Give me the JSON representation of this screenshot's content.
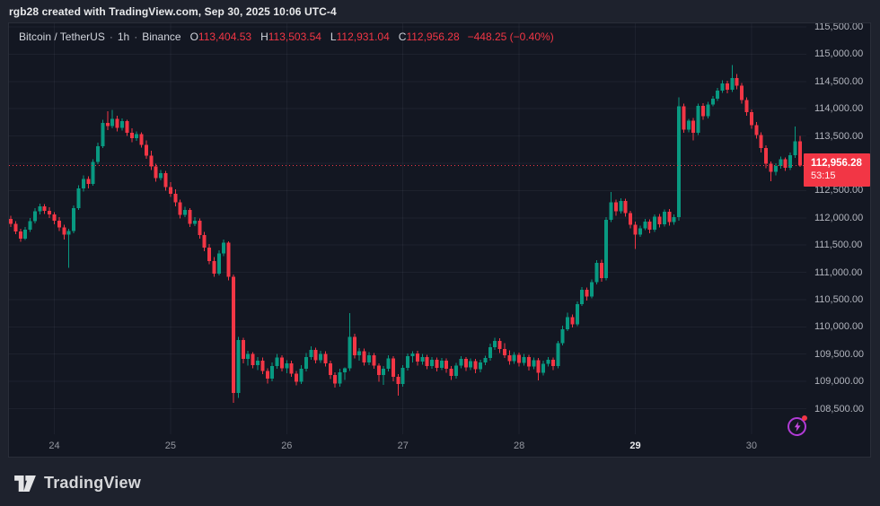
{
  "watermark": "rgb28 created with TradingView.com, Sep 30, 2025 10:06 UTC-4",
  "legend": {
    "symbol": "Bitcoin / TetherUS",
    "separator": "·",
    "interval": "1h",
    "exchange": "Binance",
    "ohlc": [
      {
        "label": "O",
        "value": "113,404.53"
      },
      {
        "label": "H",
        "value": "113,503.54"
      },
      {
        "label": "L",
        "value": "112,931.04"
      },
      {
        "label": "C",
        "value": "112,956.28"
      }
    ],
    "change": "−448.25 (−0.40%)"
  },
  "price_scale": {
    "current_price_label": "112,956.28",
    "countdown": "53:15"
  },
  "logo": {
    "text": "TradingView"
  },
  "colors": {
    "up": "#089981",
    "down": "#f23645",
    "background": "#131722",
    "outer_background": "#1e222d",
    "grid": "rgba(134,142,161,0.09)",
    "axis_text": "#b2b5be",
    "boost_purple": "#b13bd6"
  },
  "chart_data": {
    "type": "candlestick",
    "title": "Bitcoin / TetherUS · 1h · Binance",
    "interval": "1h",
    "current_price": 112956.28,
    "countdown": "53:15",
    "price_axis": {
      "min": 108500,
      "max": 115500,
      "tick_step": 500,
      "tick_values": [
        115500,
        115000,
        114500,
        114000,
        113500,
        113000,
        112500,
        112000,
        111500,
        111000,
        110500,
        110000,
        109500,
        109000,
        108500
      ],
      "tick_labels": [
        "115,500.00",
        "115,000.00",
        "114,500.00",
        "114,000.00",
        "113,500.00",
        "113,000.00",
        "112,500.00",
        "112,000.00",
        "111,500.00",
        "111,000.00",
        "110,500.00",
        "110,000.00",
        "109,500.00",
        "109,000.00",
        "108,500.00"
      ]
    },
    "time_axis": {
      "ticks": [
        {
          "label": "24",
          "candle_index": 9
        },
        {
          "label": "25",
          "candle_index": 33
        },
        {
          "label": "26",
          "candle_index": 57
        },
        {
          "label": "27",
          "candle_index": 81
        },
        {
          "label": "28",
          "candle_index": 105
        },
        {
          "label": "29",
          "candle_index": 129
        },
        {
          "label": "30",
          "candle_index": 153
        }
      ],
      "highlighted_label": "29"
    },
    "candles": [
      [
        111980,
        112040,
        111830,
        111890
      ],
      [
        111890,
        111940,
        111700,
        111750
      ],
      [
        111750,
        111800,
        111560,
        111620
      ],
      [
        111620,
        111830,
        111590,
        111780
      ],
      [
        111780,
        112000,
        111740,
        111940
      ],
      [
        111940,
        112180,
        111900,
        112120
      ],
      [
        112120,
        112260,
        112060,
        112210
      ],
      [
        112210,
        112250,
        112070,
        112130
      ],
      [
        112130,
        112190,
        112000,
        112060
      ],
      [
        112060,
        112100,
        111880,
        111950
      ],
      [
        111950,
        112010,
        111760,
        111820
      ],
      [
        111820,
        111870,
        111600,
        111690
      ],
      [
        111690,
        111800,
        111080,
        111760
      ],
      [
        111760,
        112230,
        111720,
        112180
      ],
      [
        112180,
        112600,
        112140,
        112540
      ],
      [
        112540,
        112780,
        112480,
        112710
      ],
      [
        112710,
        112760,
        112540,
        112620
      ],
      [
        112620,
        113070,
        112590,
        113020
      ],
      [
        113020,
        113380,
        112980,
        113310
      ],
      [
        113310,
        113800,
        113280,
        113740
      ],
      [
        113740,
        113950,
        113610,
        113680
      ],
      [
        113680,
        113980,
        113640,
        113810
      ],
      [
        113810,
        113870,
        113580,
        113650
      ],
      [
        113650,
        113820,
        113600,
        113770
      ],
      [
        113770,
        113800,
        113500,
        113560
      ],
      [
        113560,
        113640,
        113390,
        113460
      ],
      [
        113460,
        113580,
        113410,
        113530
      ],
      [
        113530,
        113570,
        113290,
        113340
      ],
      [
        113340,
        113420,
        113080,
        113140
      ],
      [
        113140,
        113230,
        112880,
        112940
      ],
      [
        112940,
        112990,
        112660,
        112730
      ],
      [
        112730,
        112880,
        112690,
        112820
      ],
      [
        112820,
        112860,
        112500,
        112560
      ],
      [
        112560,
        112650,
        112380,
        112440
      ],
      [
        112440,
        112520,
        112210,
        112280
      ],
      [
        112280,
        112330,
        111990,
        112050
      ],
      [
        112050,
        112200,
        112010,
        112140
      ],
      [
        112140,
        112180,
        111830,
        111890
      ],
      [
        111890,
        112010,
        111850,
        111950
      ],
      [
        111950,
        111990,
        111620,
        111680
      ],
      [
        111680,
        111740,
        111390,
        111450
      ],
      [
        111450,
        111520,
        111150,
        111210
      ],
      [
        111210,
        111280,
        110920,
        110980
      ],
      [
        110980,
        111400,
        110940,
        111350
      ],
      [
        111350,
        111600,
        111300,
        111540
      ],
      [
        111540,
        111570,
        110850,
        110920
      ],
      [
        110920,
        110960,
        108610,
        108790
      ],
      [
        108790,
        109820,
        108700,
        109760
      ],
      [
        109760,
        109800,
        109330,
        109410
      ],
      [
        109410,
        109560,
        109290,
        109500
      ],
      [
        109500,
        109540,
        109240,
        109300
      ],
      [
        109300,
        109450,
        109210,
        109380
      ],
      [
        109380,
        109440,
        109130,
        109190
      ],
      [
        109190,
        109240,
        108960,
        109050
      ],
      [
        109050,
        109350,
        109000,
        109280
      ],
      [
        109280,
        109500,
        109230,
        109440
      ],
      [
        109440,
        109480,
        109180,
        109240
      ],
      [
        109240,
        109390,
        109150,
        109330
      ],
      [
        109330,
        109380,
        109080,
        109140
      ],
      [
        109140,
        109190,
        108930,
        108990
      ],
      [
        108990,
        109300,
        108950,
        109230
      ],
      [
        109230,
        109520,
        109180,
        109450
      ],
      [
        109450,
        109640,
        109400,
        109580
      ],
      [
        109580,
        109620,
        109330,
        109390
      ],
      [
        109390,
        109560,
        109340,
        109500
      ],
      [
        109500,
        109550,
        109270,
        109330
      ],
      [
        109330,
        109380,
        109040,
        109120
      ],
      [
        109120,
        109170,
        108890,
        108960
      ],
      [
        108960,
        109230,
        108900,
        109170
      ],
      [
        109170,
        109260,
        109030,
        109240
      ],
      [
        109240,
        110250,
        109190,
        109820
      ],
      [
        109820,
        109870,
        109420,
        109480
      ],
      [
        109480,
        109610,
        109380,
        109550
      ],
      [
        109550,
        109600,
        109290,
        109350
      ],
      [
        109350,
        109540,
        109300,
        109480
      ],
      [
        109480,
        109520,
        109230,
        109290
      ],
      [
        109290,
        109330,
        108990,
        109120
      ],
      [
        109120,
        109280,
        108940,
        109230
      ],
      [
        109230,
        109480,
        109180,
        109420
      ],
      [
        109420,
        109460,
        109000,
        109080
      ],
      [
        109080,
        109130,
        108740,
        108950
      ],
      [
        108950,
        109300,
        108900,
        109250
      ],
      [
        109250,
        109510,
        109200,
        109460
      ],
      [
        109460,
        109550,
        109350,
        109510
      ],
      [
        109510,
        109560,
        109290,
        109360
      ],
      [
        109360,
        109500,
        109310,
        109450
      ],
      [
        109450,
        109490,
        109220,
        109280
      ],
      [
        109280,
        109450,
        109230,
        109400
      ],
      [
        109400,
        109440,
        109180,
        109250
      ],
      [
        109250,
        109430,
        109210,
        109380
      ],
      [
        109380,
        109420,
        109160,
        109230
      ],
      [
        109230,
        109280,
        109030,
        109100
      ],
      [
        109100,
        109340,
        109050,
        109290
      ],
      [
        109290,
        109460,
        109240,
        109410
      ],
      [
        109410,
        109450,
        109190,
        109260
      ],
      [
        109260,
        109420,
        109210,
        109370
      ],
      [
        109370,
        109410,
        109150,
        109220
      ],
      [
        109220,
        109400,
        109170,
        109350
      ],
      [
        109350,
        109470,
        109300,
        109430
      ],
      [
        109430,
        109690,
        109380,
        109630
      ],
      [
        109630,
        109800,
        109580,
        109740
      ],
      [
        109740,
        109790,
        109520,
        109590
      ],
      [
        109590,
        109700,
        109430,
        109480
      ],
      [
        109480,
        109570,
        109310,
        109370
      ],
      [
        109370,
        109540,
        109320,
        109490
      ],
      [
        109490,
        109530,
        109270,
        109340
      ],
      [
        109340,
        109500,
        109290,
        109450
      ],
      [
        109450,
        109490,
        109200,
        109270
      ],
      [
        109270,
        109440,
        109220,
        109390
      ],
      [
        109390,
        109430,
        109020,
        109160
      ],
      [
        109160,
        109380,
        109110,
        109320
      ],
      [
        109320,
        109450,
        109270,
        109400
      ],
      [
        109400,
        109440,
        109210,
        109280
      ],
      [
        109280,
        109740,
        109240,
        109700
      ],
      [
        109700,
        110020,
        109660,
        109960
      ],
      [
        109960,
        110260,
        109920,
        110180
      ],
      [
        110180,
        110230,
        109990,
        110050
      ],
      [
        110050,
        110470,
        110010,
        110420
      ],
      [
        110420,
        110730,
        110380,
        110680
      ],
      [
        110680,
        110720,
        110480,
        110560
      ],
      [
        110560,
        110870,
        110520,
        110820
      ],
      [
        110820,
        111220,
        110780,
        111170
      ],
      [
        111170,
        111230,
        110830,
        110890
      ],
      [
        110890,
        112010,
        110850,
        111960
      ],
      [
        111960,
        112470,
        111920,
        112280
      ],
      [
        112280,
        112330,
        112040,
        112120
      ],
      [
        112120,
        112360,
        112080,
        112310
      ],
      [
        112310,
        112350,
        112020,
        112090
      ],
      [
        112090,
        112130,
        111810,
        111870
      ],
      [
        111870,
        111930,
        111430,
        111690
      ],
      [
        111690,
        111860,
        111650,
        111810
      ],
      [
        111810,
        111980,
        111770,
        111930
      ],
      [
        111930,
        111970,
        111720,
        111780
      ],
      [
        111780,
        112060,
        111740,
        112020
      ],
      [
        112020,
        112070,
        111820,
        111880
      ],
      [
        111880,
        112150,
        111840,
        112110
      ],
      [
        112110,
        112160,
        111860,
        111920
      ],
      [
        111920,
        112060,
        111870,
        112010
      ],
      [
        112010,
        114210,
        111950,
        114040
      ],
      [
        114040,
        114090,
        113560,
        113620
      ],
      [
        113620,
        113810,
        113570,
        113780
      ],
      [
        113780,
        113830,
        113420,
        113560
      ],
      [
        113560,
        114090,
        113520,
        114050
      ],
      [
        114050,
        114100,
        113800,
        113860
      ],
      [
        113860,
        114130,
        113820,
        114080
      ],
      [
        114080,
        114230,
        114040,
        114180
      ],
      [
        114180,
        114380,
        114140,
        114330
      ],
      [
        114330,
        114520,
        114290,
        114460
      ],
      [
        114460,
        114510,
        114280,
        114350
      ],
      [
        114350,
        114800,
        114310,
        114560
      ],
      [
        114560,
        114640,
        114360,
        114420
      ],
      [
        114420,
        114470,
        114090,
        114160
      ],
      [
        114160,
        114210,
        113870,
        113940
      ],
      [
        113940,
        113990,
        113630,
        113700
      ],
      [
        113700,
        113760,
        113450,
        113520
      ],
      [
        113520,
        113570,
        113200,
        113280
      ],
      [
        113280,
        113330,
        112910,
        112990
      ],
      [
        112990,
        113030,
        112670,
        112840
      ],
      [
        112840,
        113000,
        112780,
        112950
      ],
      [
        112950,
        113120,
        112900,
        113070
      ],
      [
        113070,
        113110,
        112860,
        112920
      ],
      [
        112920,
        113200,
        112880,
        113150
      ],
      [
        113150,
        113670,
        113100,
        113405
      ],
      [
        113404.53,
        113503.54,
        112931.04,
        112956.28
      ]
    ]
  }
}
